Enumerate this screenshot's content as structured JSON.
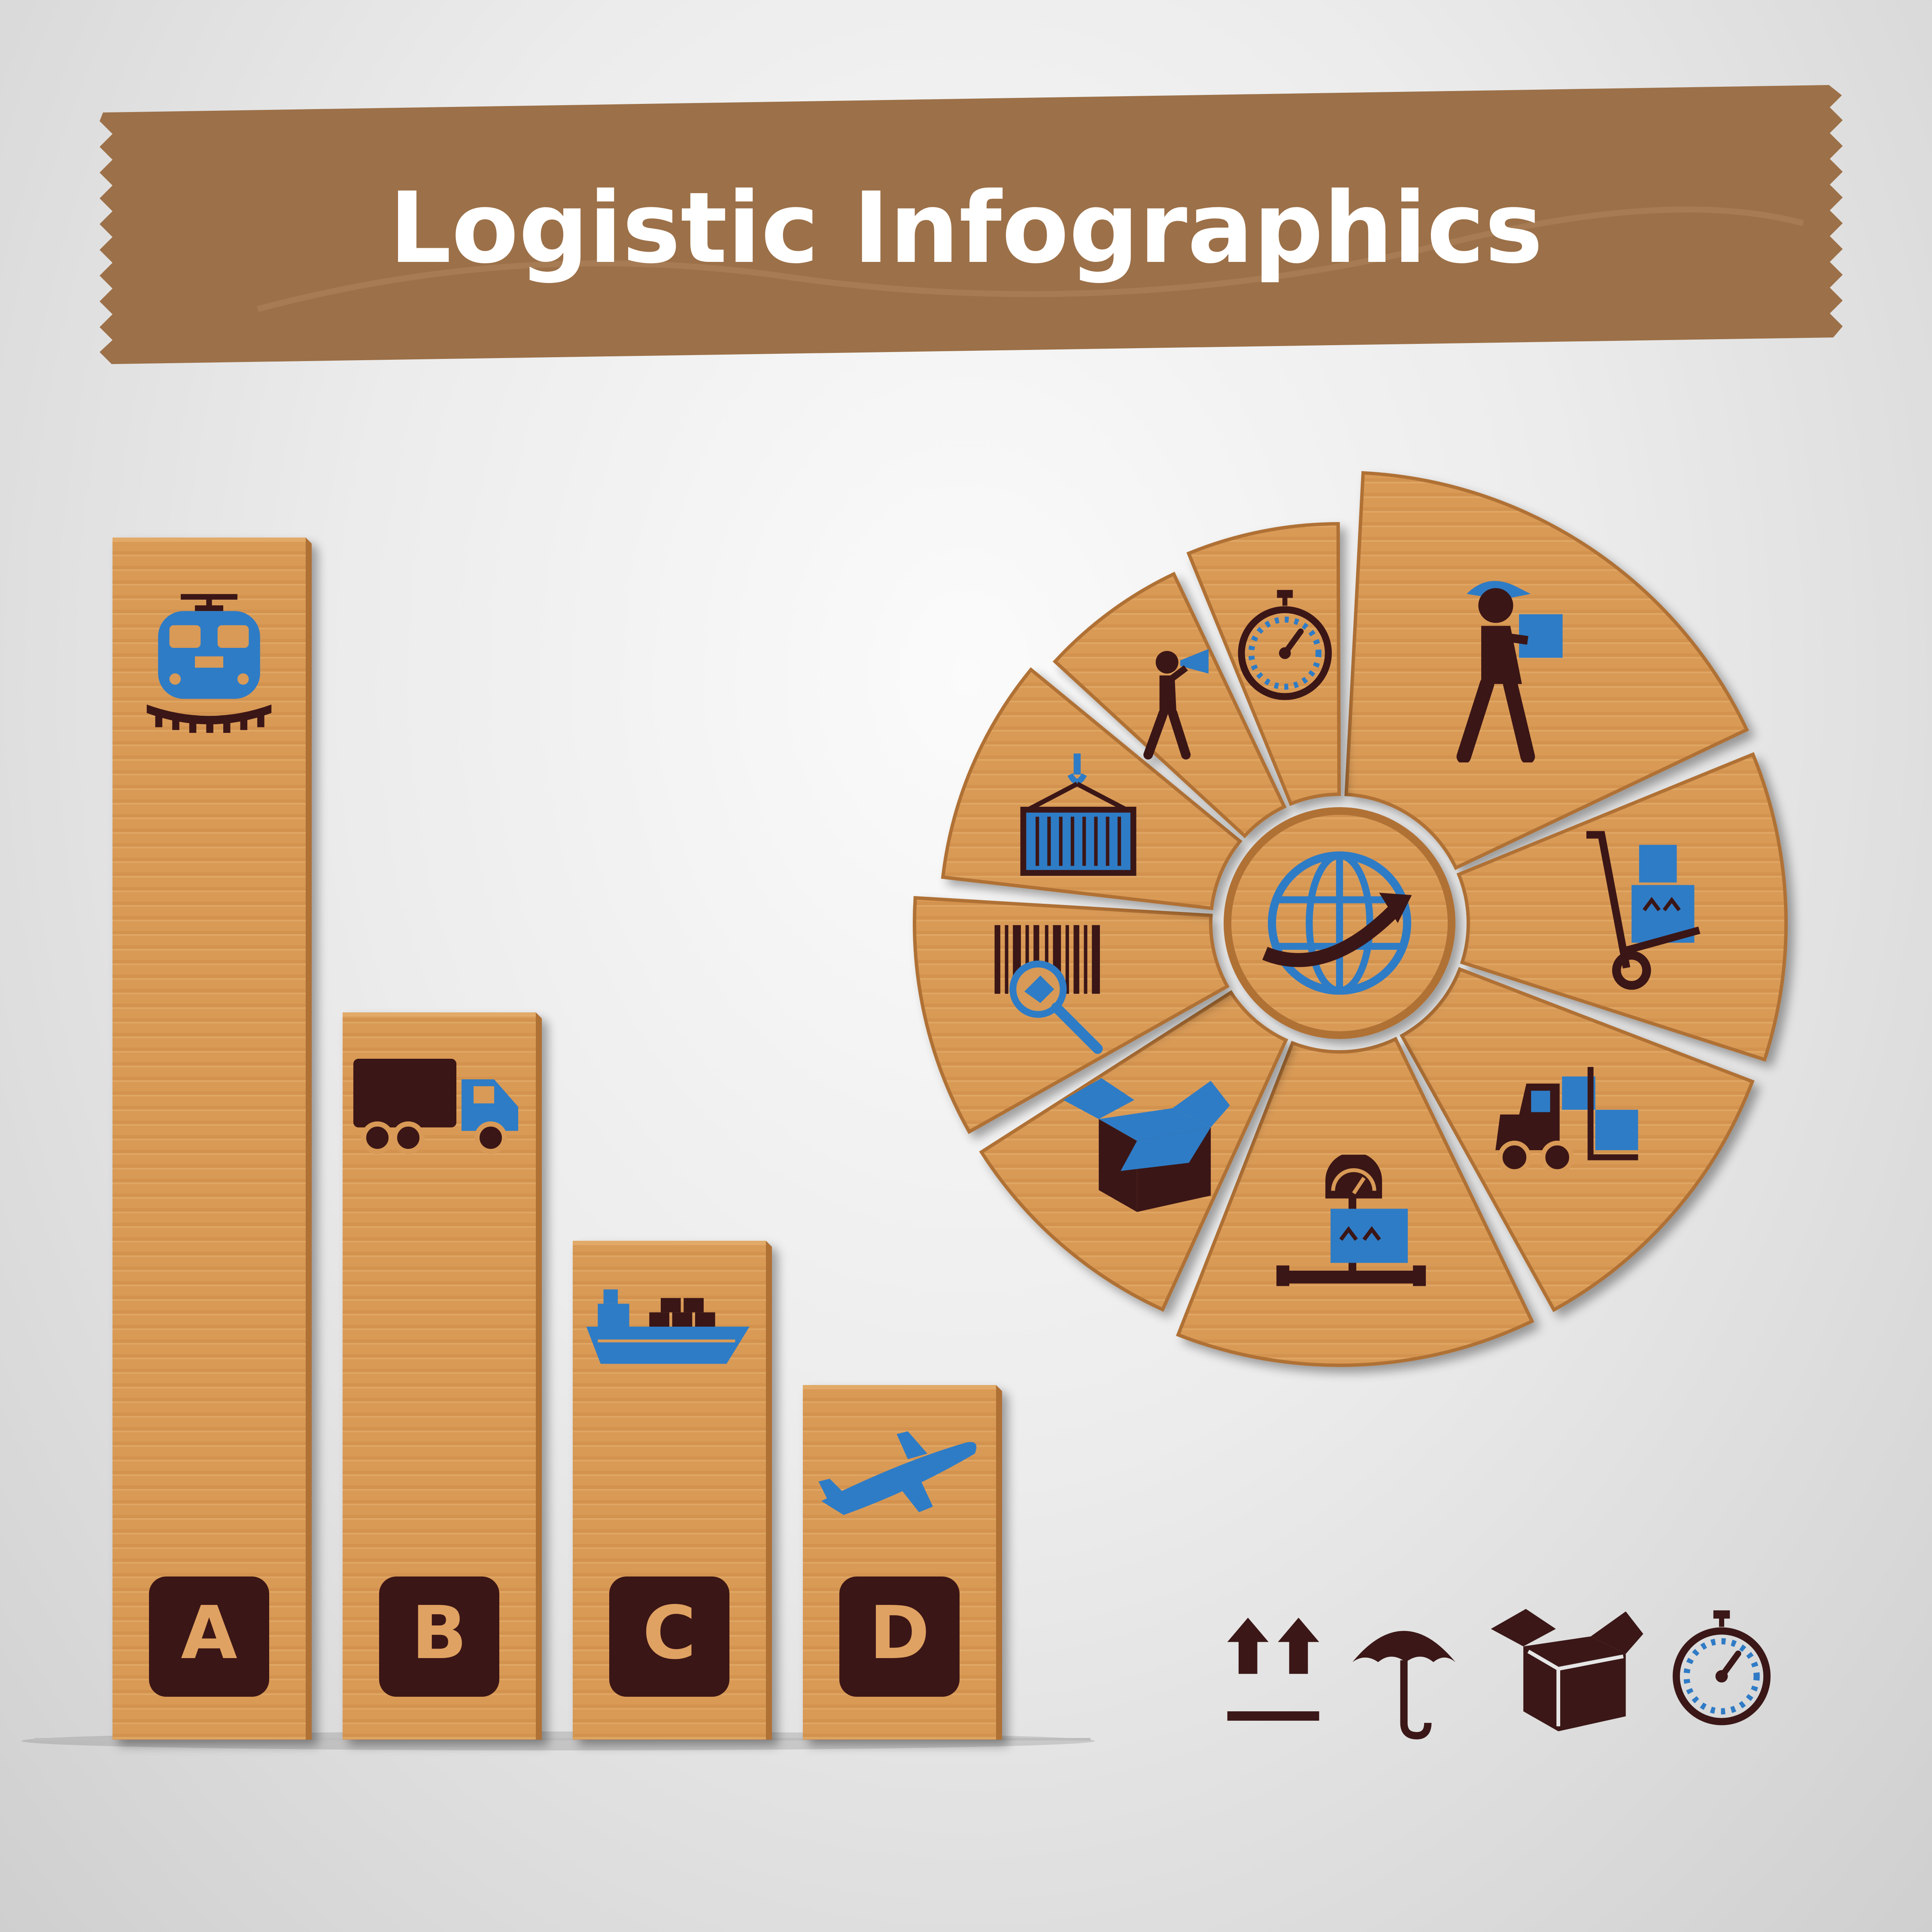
{
  "colors": {
    "tape": "#9c7048",
    "tape_light": "#ad825a",
    "cardboard": "#d89a57",
    "cardboard_light": "#e2aa68",
    "cardboard_edge": "#b07136",
    "icon_dark": "#3b1717",
    "icon_blue": "#2f7bc6",
    "letter_bg": "#3a1414",
    "letter_text": "#e0a262"
  },
  "title": "Logistic Infographics",
  "chart_data": [
    {
      "type": "bar",
      "title": "",
      "categories": [
        "A",
        "B",
        "C",
        "D"
      ],
      "values": [
        100,
        60.5,
        41.5,
        29.5
      ],
      "icons": [
        "train-icon",
        "truck-icon",
        "cargo-ship-icon",
        "airplane-icon"
      ],
      "ylim": [
        0,
        100
      ],
      "grid": false,
      "xlabel": "",
      "ylabel": ""
    },
    {
      "type": "pie",
      "title": "",
      "slices": [
        {
          "name": "delivery-courier",
          "icon": "courier-with-box-icon",
          "value": 18
        },
        {
          "name": "hand-truck",
          "icon": "hand-truck-icon",
          "value": 12
        },
        {
          "name": "forklift",
          "icon": "forklift-icon",
          "value": 12
        },
        {
          "name": "weighing",
          "icon": "weighing-scale-icon",
          "value": 14
        },
        {
          "name": "packaging",
          "icon": "open-box-icon",
          "value": 10
        },
        {
          "name": "barcode-tracking",
          "icon": "barcode-search-icon",
          "value": 10
        },
        {
          "name": "container-crane",
          "icon": "container-hook-icon",
          "value": 10
        },
        {
          "name": "announcement",
          "icon": "person-megaphone-icon",
          "value": 7
        },
        {
          "name": "delivery-time",
          "icon": "stopwatch-icon",
          "value": 7
        }
      ],
      "center_icon": "globe-arrow-icon"
    }
  ],
  "footer_icons": [
    "this-side-up-icon",
    "keep-dry-umbrella-icon",
    "open-box-icon",
    "stopwatch-icon"
  ]
}
